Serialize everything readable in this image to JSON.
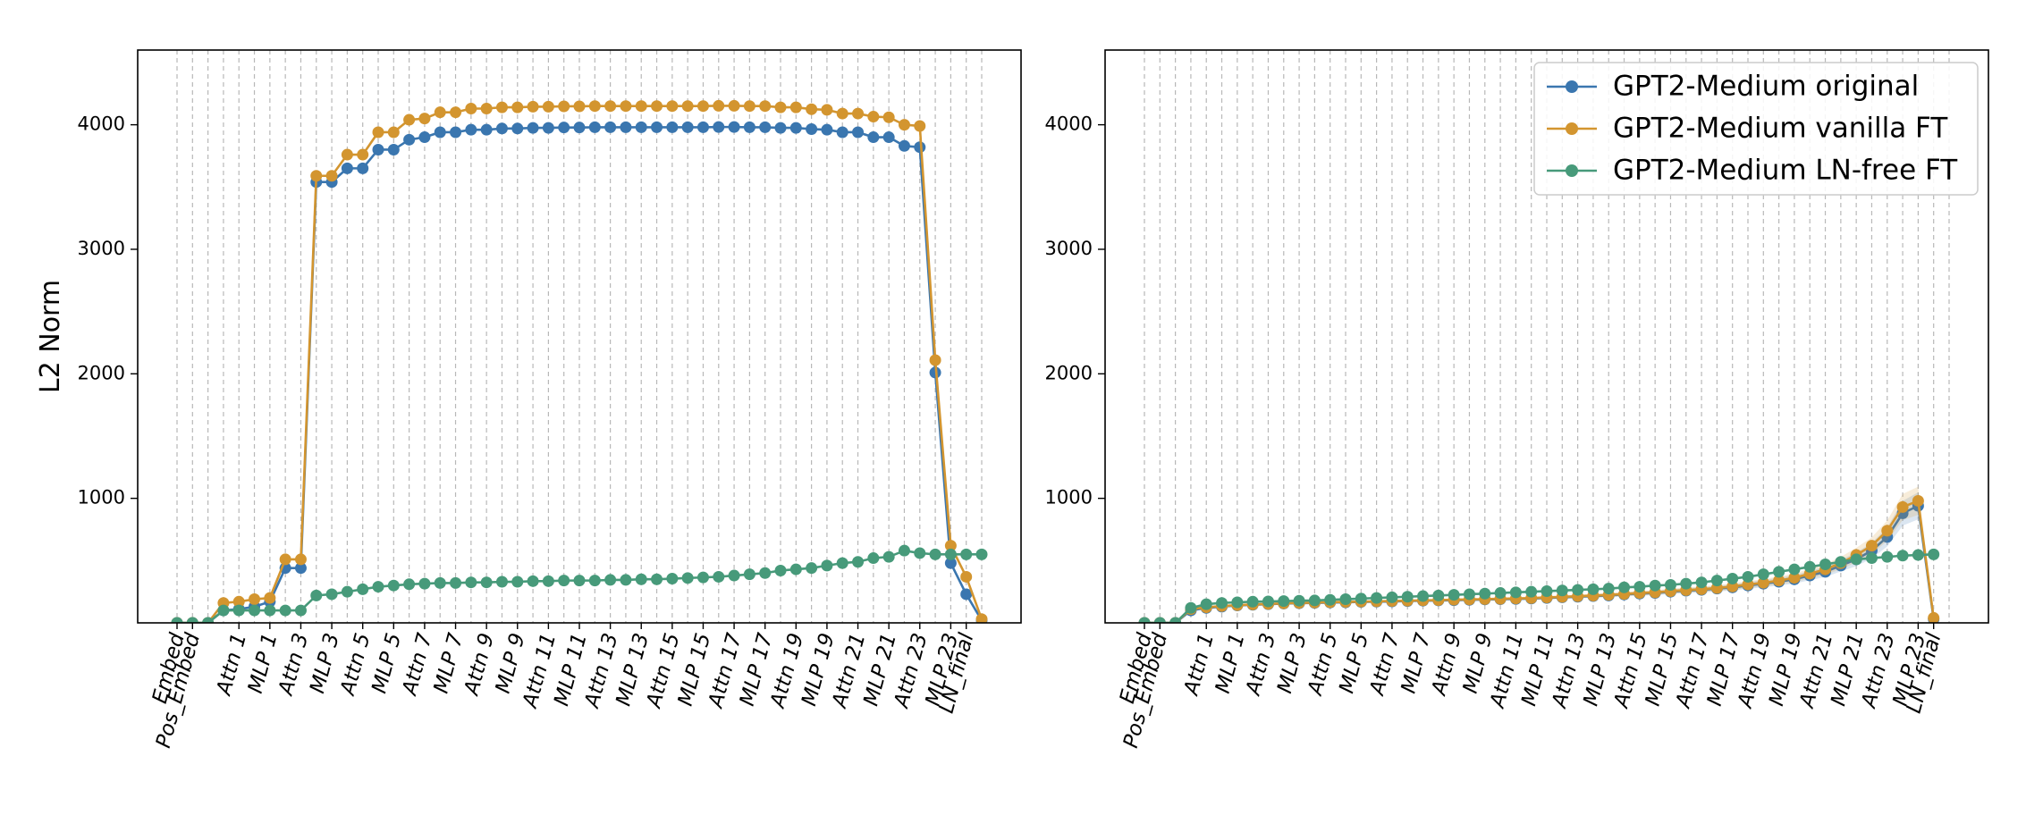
{
  "chart_data": [
    {
      "type": "line",
      "panel": "left",
      "ylabel": "L2 Norm",
      "xlabel": "",
      "ylim": [
        0,
        4600
      ],
      "yticks": [
        1000,
        2000,
        3000,
        4000
      ],
      "ytick_labels": [
        "1000",
        "2000",
        "3000",
        "4000"
      ],
      "grid": "vertical dashed at every x position",
      "legend": null,
      "x_tick_labels": [
        "Embed",
        "Pos_Embed",
        "Attn 1",
        "MLP 1",
        "Attn 3",
        "MLP 3",
        "Attn 5",
        "MLP 5",
        "Attn 7",
        "MLP 7",
        "Attn 9",
        "MLP 9",
        "Attn 11",
        "MLP 11",
        "Attn 13",
        "MLP 13",
        "Attn 15",
        "MLP 15",
        "Attn 17",
        "MLP 17",
        "Attn 19",
        "MLP 19",
        "Attn 21",
        "MLP 21",
        "Attn 23",
        "MLP 23",
        "LN_final"
      ],
      "x_tick_positions": [
        0,
        1,
        4,
        6,
        8,
        10,
        12,
        14,
        16,
        18,
        20,
        22,
        24,
        26,
        28,
        30,
        32,
        34,
        36,
        38,
        40,
        42,
        44,
        46,
        48,
        50,
        51
      ],
      "series": [
        {
          "name": "GPT2-Medium original",
          "color": "#3a76af",
          "values": [
            0,
            0,
            0,
            100,
            110,
            130,
            170,
            440,
            440,
            3540,
            3540,
            3650,
            3650,
            3800,
            3800,
            3880,
            3900,
            3940,
            3940,
            3960,
            3960,
            3970,
            3970,
            3975,
            3975,
            3978,
            3978,
            3980,
            3980,
            3980,
            3980,
            3980,
            3980,
            3980,
            3980,
            3982,
            3982,
            3980,
            3980,
            3975,
            3975,
            3965,
            3960,
            3940,
            3940,
            3900,
            3900,
            3830,
            3820,
            2010,
            480,
            230,
            20
          ]
        },
        {
          "name": "GPT2-Medium vanilla FT",
          "color": "#d3952f",
          "values": [
            0,
            0,
            0,
            160,
            170,
            190,
            200,
            510,
            510,
            3590,
            3590,
            3760,
            3760,
            3940,
            3940,
            4040,
            4050,
            4100,
            4100,
            4130,
            4130,
            4140,
            4140,
            4145,
            4145,
            4148,
            4148,
            4150,
            4150,
            4150,
            4150,
            4150,
            4150,
            4150,
            4150,
            4152,
            4152,
            4150,
            4150,
            4140,
            4140,
            4125,
            4120,
            4090,
            4090,
            4065,
            4060,
            4000,
            3990,
            2110,
            620,
            370,
            30
          ]
        },
        {
          "name": "GPT2-Medium LN-free FT",
          "color": "#479a7a",
          "values": [
            0,
            0,
            0,
            100,
            100,
            100,
            100,
            100,
            100,
            220,
            230,
            250,
            270,
            290,
            300,
            310,
            315,
            320,
            320,
            325,
            325,
            330,
            330,
            335,
            335,
            340,
            340,
            340,
            345,
            345,
            350,
            350,
            355,
            360,
            365,
            370,
            380,
            390,
            400,
            420,
            430,
            440,
            460,
            480,
            490,
            520,
            530,
            580,
            560,
            550,
            550,
            550,
            550
          ]
        }
      ]
    },
    {
      "type": "line",
      "panel": "right",
      "ylabel": "",
      "xlabel": "",
      "ylim": [
        0,
        4600
      ],
      "yticks": [
        1000,
        2000,
        3000,
        4000
      ],
      "ytick_labels": [
        "1000",
        "2000",
        "3000",
        "4000"
      ],
      "grid": "vertical dashed at every x position",
      "legend": "top-right",
      "x_tick_labels": [
        "Embed",
        "Pos_Embed",
        "Attn 1",
        "MLP 1",
        "Attn 3",
        "MLP 3",
        "Attn 5",
        "MLP 5",
        "Attn 7",
        "MLP 7",
        "Attn 9",
        "MLP 9",
        "Attn 11",
        "MLP 11",
        "Attn 13",
        "MLP 13",
        "Attn 15",
        "MLP 15",
        "Attn 17",
        "MLP 17",
        "Attn 19",
        "MLP 19",
        "Attn 21",
        "MLP 21",
        "Attn 23",
        "MLP 23",
        "LN_final"
      ],
      "x_tick_positions": [
        0,
        1,
        4,
        6,
        8,
        10,
        12,
        14,
        16,
        18,
        20,
        22,
        24,
        26,
        28,
        30,
        32,
        34,
        36,
        38,
        40,
        42,
        44,
        46,
        48,
        50,
        51
      ],
      "series": [
        {
          "name": "GPT2-Medium original",
          "color": "#3a76af",
          "values": [
            0,
            0,
            0,
            100,
            120,
            130,
            140,
            145,
            150,
            155,
            158,
            160,
            163,
            165,
            168,
            170,
            172,
            175,
            178,
            180,
            182,
            185,
            188,
            190,
            192,
            195,
            200,
            205,
            210,
            215,
            220,
            228,
            235,
            240,
            250,
            258,
            265,
            275,
            285,
            300,
            315,
            330,
            350,
            380,
            410,
            460,
            510,
            580,
            690,
            880,
            940,
            30
          ]
        },
        {
          "name": "GPT2-Medium vanilla FT",
          "color": "#d3952f",
          "values": [
            0,
            0,
            0,
            110,
            125,
            135,
            142,
            148,
            152,
            157,
            160,
            163,
            166,
            168,
            171,
            173,
            176,
            178,
            181,
            183,
            186,
            188,
            191,
            193,
            196,
            199,
            204,
            209,
            214,
            219,
            225,
            232,
            240,
            245,
            255,
            263,
            270,
            280,
            292,
            308,
            322,
            340,
            362,
            395,
            430,
            480,
            545,
            620,
            740,
            930,
            980,
            40
          ]
        },
        {
          "name": "GPT2-Medium LN-free FT",
          "color": "#479a7a",
          "values": [
            0,
            0,
            0,
            120,
            150,
            160,
            165,
            170,
            172,
            175,
            178,
            180,
            185,
            190,
            195,
            200,
            205,
            210,
            215,
            220,
            225,
            230,
            235,
            240,
            245,
            250,
            255,
            260,
            265,
            270,
            275,
            285,
            290,
            300,
            305,
            315,
            325,
            340,
            355,
            370,
            390,
            410,
            430,
            450,
            470,
            490,
            510,
            520,
            530,
            540,
            545,
            550
          ]
        }
      ]
    }
  ]
}
